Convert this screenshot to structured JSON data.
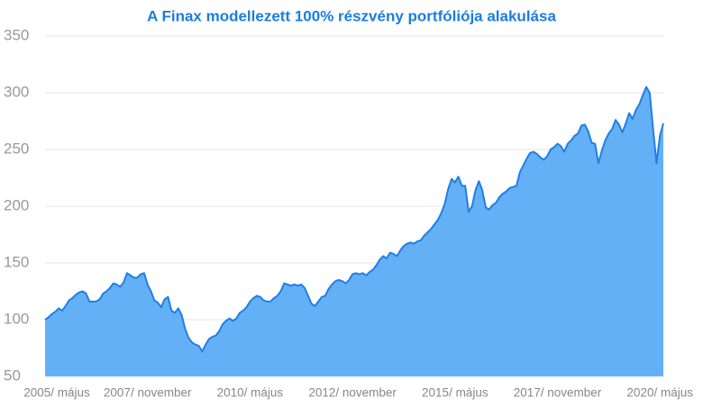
{
  "chart_data": {
    "type": "area",
    "title": "A Finax modellezett 100% részvény portfóliója alakulása",
    "categories": [
      "2005/ május",
      null,
      null,
      null,
      null,
      null,
      null,
      null,
      null,
      null,
      null,
      null,
      null,
      null,
      null,
      null,
      null,
      null,
      null,
      null,
      null,
      null,
      null,
      null,
      null,
      null,
      null,
      null,
      null,
      null,
      "2007/ november",
      null,
      null,
      null,
      null,
      null,
      null,
      null,
      null,
      null,
      null,
      null,
      null,
      null,
      null,
      null,
      null,
      null,
      null,
      null,
      null,
      null,
      null,
      null,
      null,
      null,
      null,
      null,
      null,
      null,
      "2010/ május",
      null,
      null,
      null,
      null,
      null,
      null,
      null,
      null,
      null,
      null,
      null,
      null,
      null,
      null,
      null,
      null,
      null,
      null,
      null,
      null,
      null,
      null,
      null,
      null,
      null,
      null,
      null,
      null,
      null,
      "2012/ november",
      null,
      null,
      null,
      null,
      null,
      null,
      null,
      null,
      null,
      null,
      null,
      null,
      null,
      null,
      null,
      null,
      null,
      null,
      null,
      null,
      null,
      null,
      null,
      null,
      null,
      null,
      null,
      null,
      null,
      "2015/ május",
      null,
      null,
      null,
      null,
      null,
      null,
      null,
      null,
      null,
      null,
      null,
      null,
      null,
      null,
      null,
      null,
      null,
      null,
      null,
      null,
      null,
      null,
      null,
      null,
      null,
      null,
      null,
      null,
      null,
      "2017/ november",
      null,
      null,
      null,
      null,
      null,
      null,
      null,
      null,
      null,
      null,
      null,
      null,
      null,
      null,
      null,
      null,
      null,
      null,
      null,
      null,
      null,
      null,
      null,
      null,
      null,
      null,
      null,
      null,
      null,
      "2020/ május",
      null
    ],
    "values": [
      100,
      102,
      105,
      107,
      110,
      108,
      112,
      117,
      119,
      122,
      124,
      125,
      123,
      116,
      116,
      116,
      118,
      123,
      125,
      128,
      132,
      131,
      129,
      133,
      141,
      139,
      137,
      137,
      140,
      141,
      131,
      125,
      117,
      115,
      111,
      118,
      120,
      108,
      106,
      110,
      104,
      92,
      84,
      80,
      78,
      77,
      72,
      78,
      83,
      85,
      86,
      90,
      96,
      99,
      101,
      99,
      101,
      106,
      108,
      111,
      116,
      119,
      121,
      120,
      117,
      116,
      116,
      119,
      121,
      125,
      132,
      131,
      130,
      131,
      130,
      131,
      128,
      121,
      114,
      112,
      116,
      120,
      121,
      127,
      131,
      134,
      135,
      134,
      132,
      135,
      140,
      141,
      140,
      141,
      139,
      142,
      144,
      148,
      153,
      156,
      154,
      159,
      158,
      156,
      161,
      165,
      167,
      168,
      167,
      169,
      170,
      174,
      177,
      180,
      184,
      188,
      194,
      202,
      215,
      224,
      221,
      226,
      218,
      218,
      195,
      200,
      214,
      222,
      214,
      199,
      197,
      201,
      203,
      208,
      211,
      213,
      216,
      217,
      218,
      230,
      236,
      242,
      247,
      248,
      246,
      243,
      241,
      244,
      250,
      252,
      255,
      253,
      248,
      255,
      258,
      262,
      264,
      271,
      272,
      266,
      256,
      255,
      238,
      249,
      258,
      264,
      268,
      276,
      272,
      265,
      273,
      282,
      277,
      285,
      290,
      298,
      305,
      300,
      268,
      238,
      262,
      273
    ],
    "color": "#1f7fe6",
    "fill": "#64b0f6",
    "ylim": [
      50,
      350
    ],
    "yticks": [
      50,
      100,
      150,
      200,
      250,
      300,
      350
    ],
    "grid": true
  }
}
